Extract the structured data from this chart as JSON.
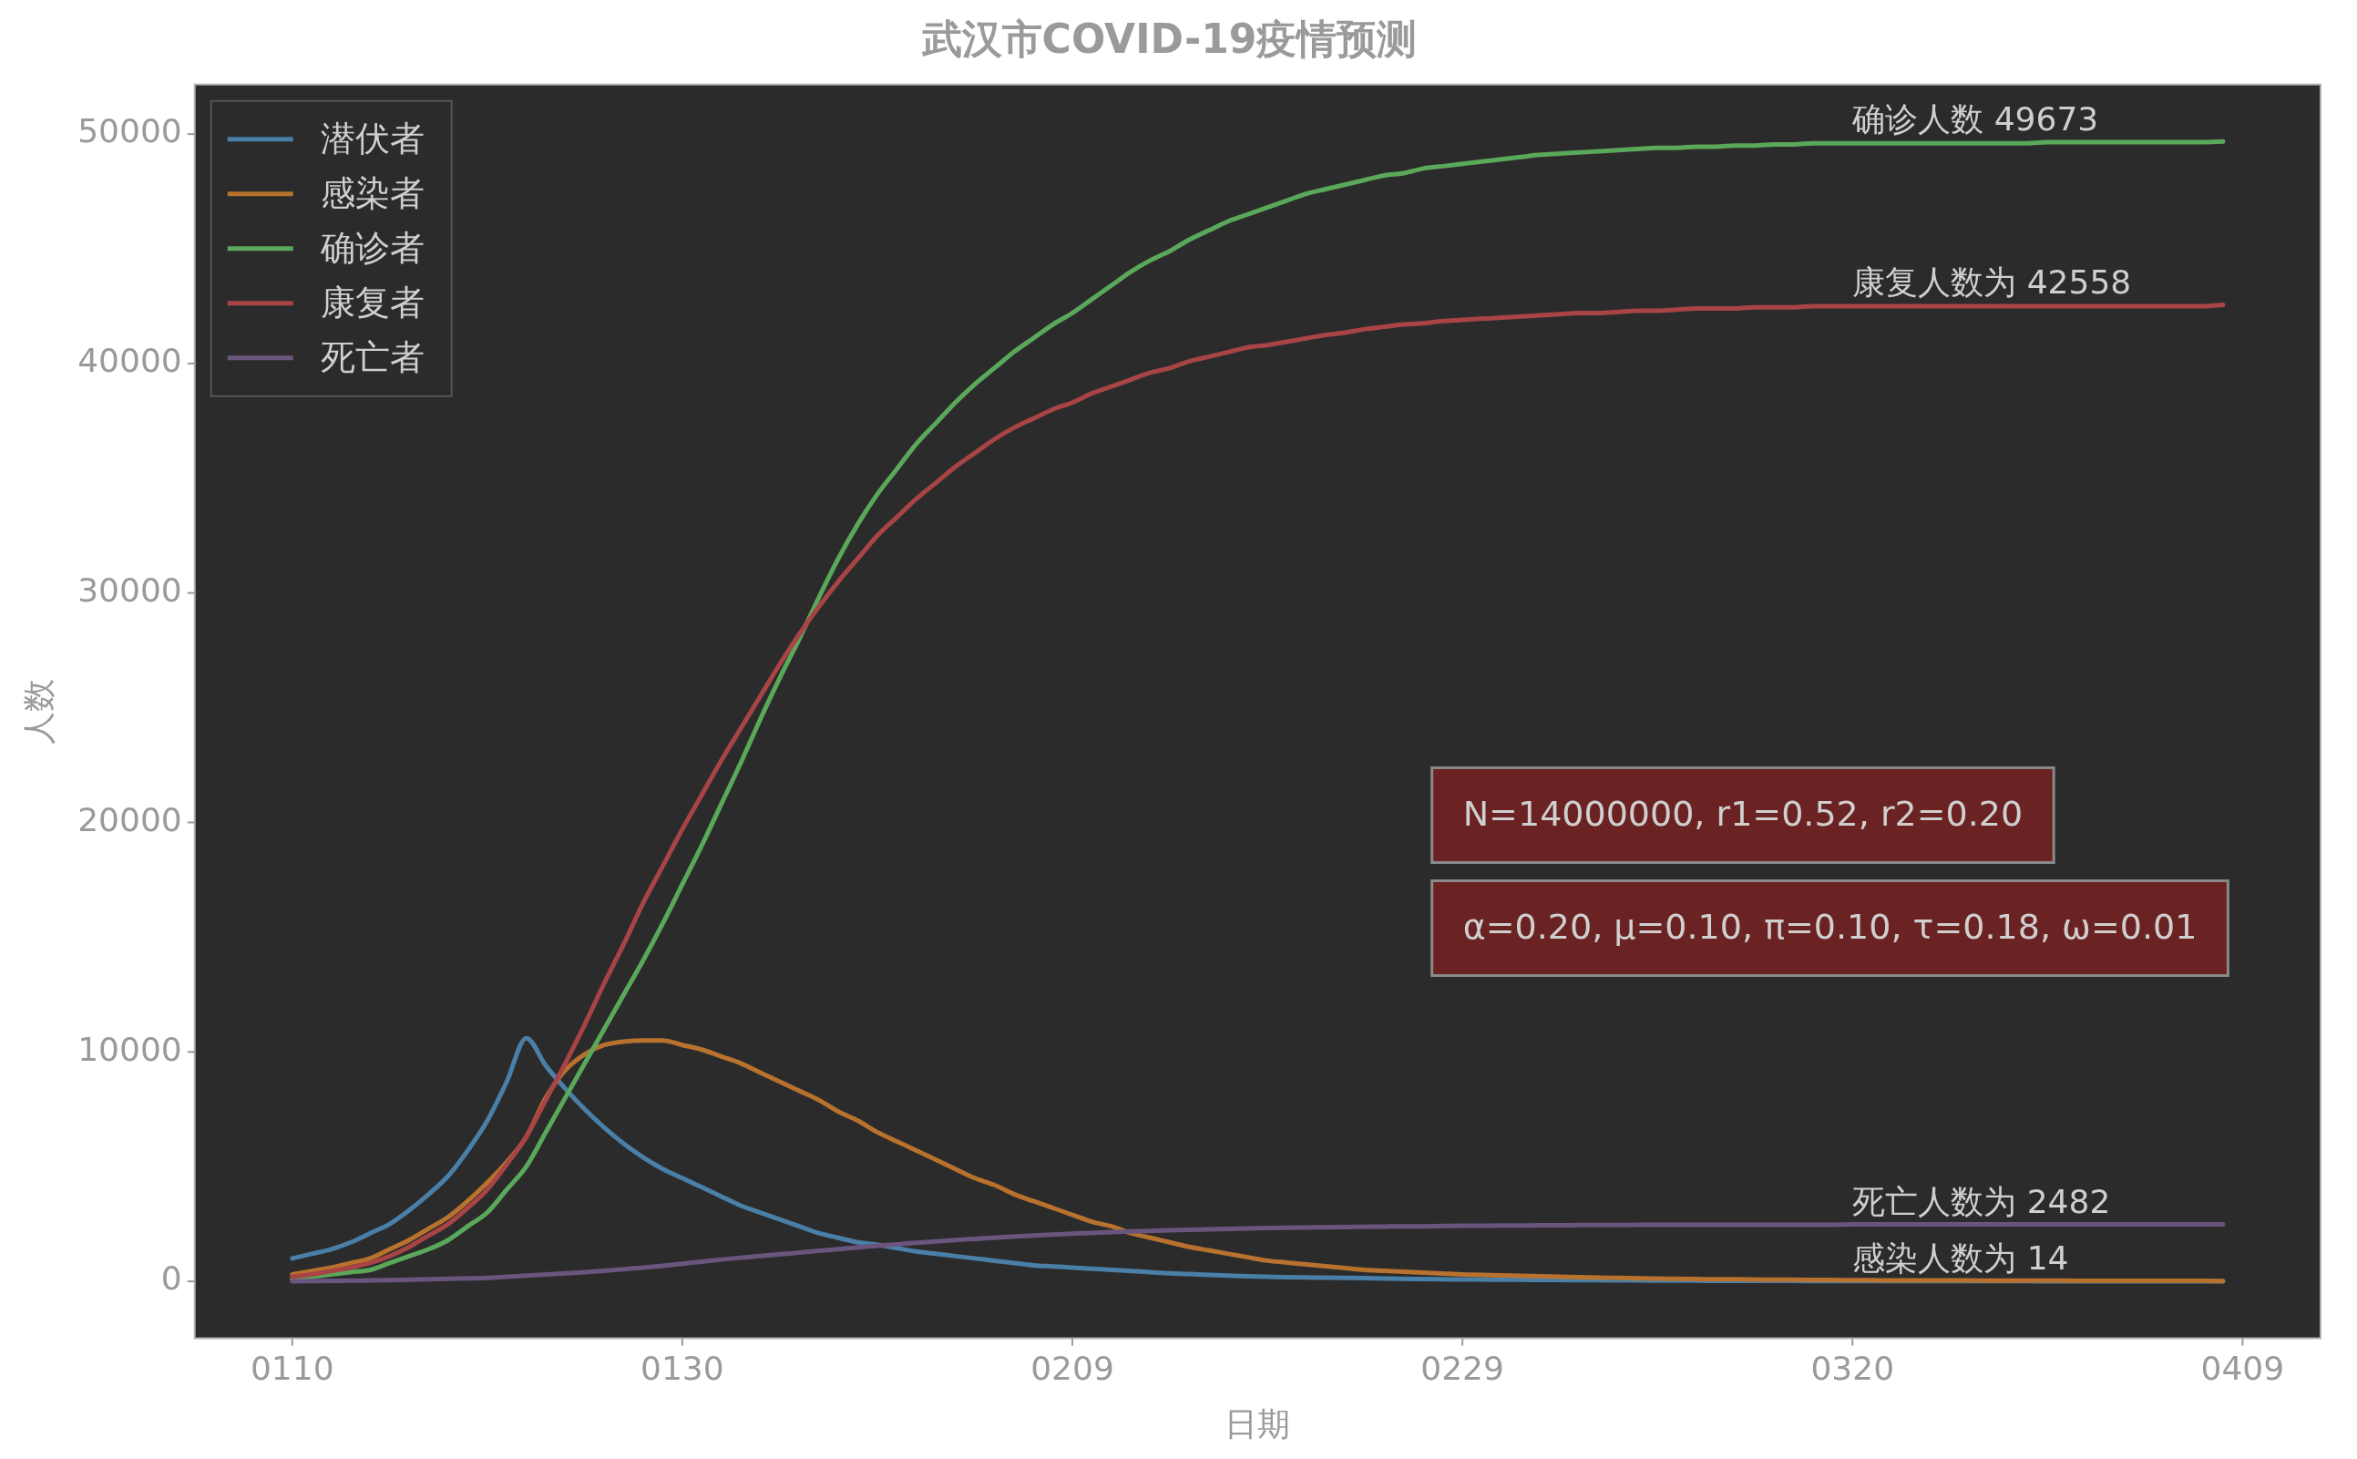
{
  "chart_data": {
    "type": "line",
    "title": "武汉市COVID-19疫情预测",
    "xlabel": "日期",
    "ylabel": "人数",
    "categories": [
      "0110",
      null,
      null,
      null,
      null,
      null,
      null,
      null,
      null,
      null,
      null,
      null,
      null,
      null,
      null,
      null,
      null,
      null,
      null,
      null,
      "0130",
      null,
      null,
      null,
      null,
      null,
      null,
      null,
      null,
      null,
      null,
      null,
      null,
      null,
      null,
      null,
      null,
      null,
      null,
      null,
      "0209",
      null,
      null,
      null,
      null,
      null,
      null,
      null,
      null,
      null,
      null,
      null,
      null,
      null,
      null,
      null,
      null,
      null,
      null,
      null,
      "0229",
      null,
      null,
      null,
      null,
      null,
      null,
      null,
      null,
      null,
      null,
      null,
      null,
      null,
      null,
      null,
      null,
      null,
      null,
      null,
      "0320",
      null,
      null,
      null,
      null,
      null,
      null,
      null,
      null,
      null,
      null,
      null,
      null,
      null,
      null,
      null,
      null,
      null,
      null,
      null,
      "0409"
    ],
    "ylim": [
      -2484,
      52157
    ],
    "yticks": [
      0,
      10000,
      20000,
      30000,
      40000,
      50000
    ],
    "grid": false,
    "legend": "top left",
    "marker": "none",
    "line_style": "solid",
    "series": [
      {
        "name": "潜伏者",
        "color": "#4a7fa8",
        "values": [
          1000,
          1200,
          1400,
          1700,
          2100,
          2500,
          3100,
          3800,
          4600,
          5700,
          7000,
          8700,
          10600,
          9400,
          8400,
          7500,
          6700,
          6000,
          5400,
          4900,
          4500,
          4100,
          3700,
          3300,
          3000,
          2700,
          2400,
          2100,
          1900,
          1700,
          1600,
          1450,
          1300,
          1200,
          1100,
          1000,
          900,
          800,
          700,
          650,
          600,
          550,
          500,
          450,
          400,
          350,
          320,
          280,
          250,
          220,
          200,
          180,
          170,
          160,
          150,
          140,
          120,
          110,
          100,
          90,
          80,
          80,
          70,
          70,
          60,
          60,
          50,
          50,
          40,
          40,
          30,
          30,
          30,
          20,
          20,
          20,
          20,
          20,
          10,
          10,
          10,
          10,
          10,
          10,
          10,
          10,
          10,
          10,
          10,
          10,
          0,
          0,
          0,
          0,
          0,
          0,
          0,
          0,
          0,
          0,
          null
        ]
      },
      {
        "name": "感染者",
        "color": "#b8722e",
        "values": [
          300,
          450,
          600,
          800,
          1000,
          1400,
          1800,
          2300,
          2800,
          3500,
          4300,
          5200,
          6300,
          8000,
          9200,
          9900,
          10300,
          10450,
          10500,
          10500,
          10300,
          10100,
          9800,
          9500,
          9100,
          8700,
          8300,
          7900,
          7400,
          7000,
          6500,
          6100,
          5700,
          5300,
          4900,
          4500,
          4200,
          3800,
          3500,
          3200,
          2900,
          2600,
          2400,
          2100,
          1900,
          1700,
          1500,
          1350,
          1200,
          1050,
          900,
          820,
          740,
          660,
          580,
          500,
          460,
          420,
          380,
          340,
          300,
          280,
          260,
          240,
          220,
          200,
          180,
          160,
          150,
          130,
          120,
          110,
          100,
          90,
          90,
          80,
          70,
          70,
          60,
          60,
          50,
          50,
          40,
          40,
          40,
          40,
          40,
          30,
          30,
          30,
          30,
          30,
          20,
          20,
          20,
          20,
          20,
          20,
          20,
          14,
          null
        ]
      },
      {
        "name": "确诊者",
        "color": "#5aa85a",
        "values": [
          100,
          200,
          300,
          400,
          500,
          800,
          1100,
          1400,
          1800,
          2400,
          3000,
          4000,
          5000,
          6500,
          8000,
          9500,
          11000,
          12500,
          14000,
          15600,
          17300,
          19000,
          20800,
          22600,
          24500,
          26300,
          28000,
          29800,
          31500,
          33000,
          34300,
          35400,
          36500,
          37400,
          38300,
          39100,
          39800,
          40500,
          41100,
          41700,
          42200,
          42800,
          43400,
          44000,
          44500,
          44900,
          45400,
          45800,
          46200,
          46500,
          46800,
          47100,
          47400,
          47600,
          47800,
          48000,
          48200,
          48300,
          48500,
          48600,
          48700,
          48800,
          48900,
          49000,
          49100,
          49150,
          49200,
          49250,
          49300,
          49350,
          49400,
          49400,
          49450,
          49450,
          49500,
          49500,
          49550,
          49550,
          49600,
          49600,
          49600,
          49600,
          49600,
          49600,
          49600,
          49600,
          49600,
          49600,
          49600,
          49600,
          49650,
          49650,
          49650,
          49650,
          49650,
          49650,
          49650,
          49650,
          49650,
          49673,
          null
        ]
      },
      {
        "name": "康复者",
        "color": "#a84446",
        "values": [
          200,
          300,
          450,
          600,
          800,
          1100,
          1500,
          2000,
          2500,
          3200,
          4000,
          5100,
          6300,
          7900,
          9500,
          11200,
          13000,
          14700,
          16500,
          18100,
          19700,
          21200,
          22700,
          24100,
          25500,
          26900,
          28200,
          29400,
          30500,
          31500,
          32500,
          33300,
          34100,
          34800,
          35500,
          36100,
          36700,
          37200,
          37600,
          38000,
          38300,
          38700,
          39000,
          39300,
          39600,
          39800,
          40100,
          40300,
          40500,
          40700,
          40800,
          40950,
          41100,
          41250,
          41350,
          41500,
          41600,
          41700,
          41750,
          41850,
          41900,
          41950,
          42000,
          42050,
          42100,
          42150,
          42200,
          42200,
          42250,
          42300,
          42300,
          42350,
          42400,
          42400,
          42400,
          42450,
          42450,
          42450,
          42500,
          42500,
          42500,
          42500,
          42500,
          42500,
          42500,
          42500,
          42500,
          42500,
          42500,
          42500,
          42500,
          42500,
          42500,
          42500,
          42500,
          42500,
          42500,
          42500,
          42500,
          42558,
          null
        ]
      },
      {
        "name": "死亡者",
        "color": "#6b557f",
        "values": [
          0,
          10,
          20,
          30,
          40,
          50,
          70,
          90,
          110,
          130,
          150,
          200,
          250,
          300,
          350,
          400,
          460,
          530,
          600,
          680,
          770,
          860,
          950,
          1030,
          1100,
          1180,
          1250,
          1330,
          1400,
          1480,
          1550,
          1610,
          1680,
          1740,
          1800,
          1850,
          1900,
          1950,
          2000,
          2040,
          2080,
          2110,
          2150,
          2180,
          2200,
          2230,
          2250,
          2270,
          2290,
          2310,
          2330,
          2340,
          2350,
          2360,
          2370,
          2380,
          2390,
          2400,
          2400,
          2410,
          2420,
          2420,
          2430,
          2430,
          2440,
          2440,
          2450,
          2450,
          2450,
          2460,
          2460,
          2460,
          2460,
          2460,
          2460,
          2460,
          2460,
          2460,
          2460,
          2460,
          2480,
          2480,
          2480,
          2480,
          2480,
          2480,
          2480,
          2480,
          2480,
          2480,
          2480,
          2480,
          2480,
          2480,
          2480,
          2480,
          2480,
          2480,
          2480,
          2482,
          null
        ]
      }
    ],
    "annotations": [
      {
        "text": "确诊人数 49673",
        "x": "0320",
        "y": 49673
      },
      {
        "text": "康复人数为 42558",
        "x": "0320",
        "y": 42558
      },
      {
        "text": "死亡人数为 2482",
        "x": "0320",
        "y": 2482
      },
      {
        "text": "感染人数为 14",
        "x": "0320",
        "y": 14
      },
      "N=14000000, r1=0.52, r2=0.20",
      "α=0.20, μ=0.10, π=0.10, τ=0.18, ω=0.01"
    ]
  }
}
